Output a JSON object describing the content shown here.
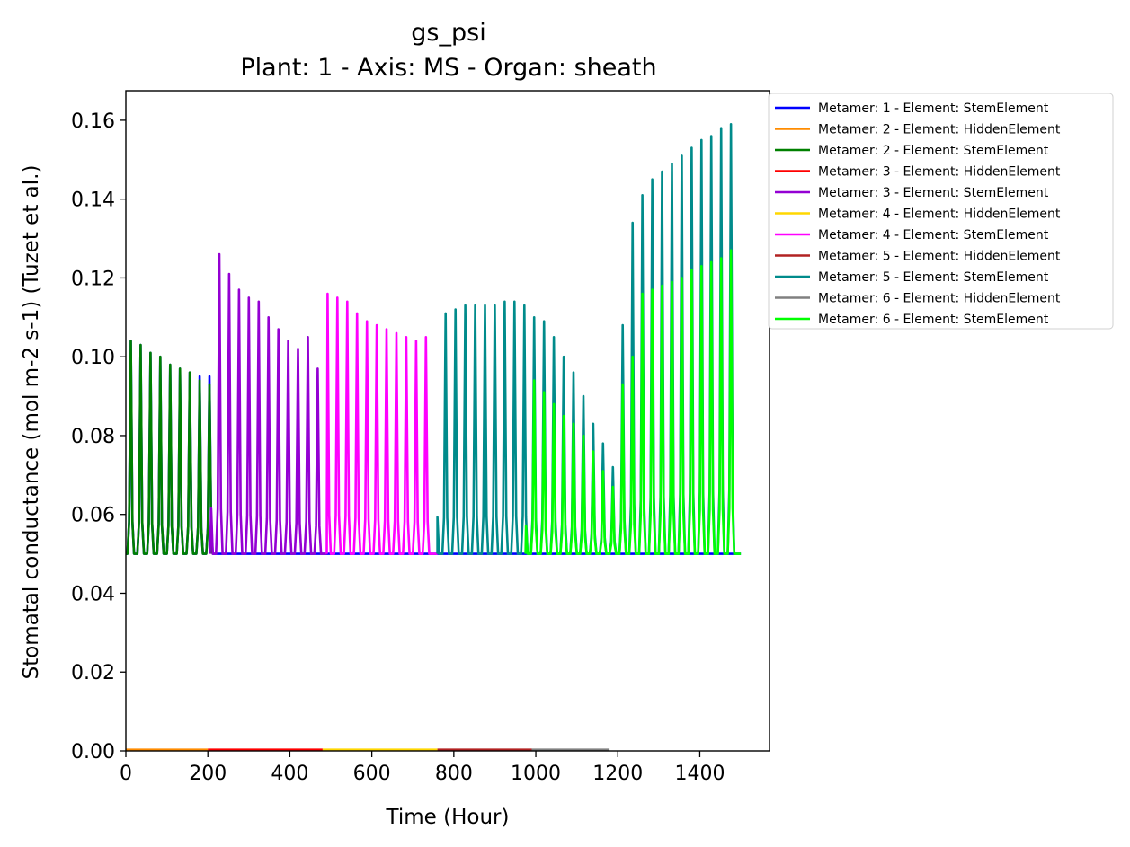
{
  "chart_data": {
    "type": "line",
    "title": "gs_psi",
    "subtitle": "Plant: 1 - Axis: MS - Organ: sheath",
    "xlabel": "Time (Hour)",
    "ylabel": "Stomatal conductance (mol m-2 s-1) (Tuzet et al.)",
    "xlim": [
      0,
      1570
    ],
    "ylim": [
      0,
      0.1675
    ],
    "xticks": [
      "0",
      "200",
      "400",
      "600",
      "800",
      "1000",
      "1200",
      "1400"
    ],
    "xtick_values": [
      0,
      200,
      400,
      600,
      800,
      1000,
      1200,
      1400
    ],
    "yticks": [
      "0.00",
      "0.02",
      "0.04",
      "0.06",
      "0.08",
      "0.10",
      "0.12",
      "0.14",
      "0.16"
    ],
    "ytick_values": [
      0,
      0.02,
      0.04,
      0.06,
      0.08,
      0.1,
      0.12,
      0.14,
      0.16
    ],
    "grid": false,
    "legend_position": "outside-right",
    "baseline": 0.05,
    "period_hours": 24,
    "series": [
      {
        "name": "Metamer: 1 - Element: StemElement",
        "color": "#0000ff",
        "start": 0,
        "end": 1500,
        "peaks": [
          0.104,
          0.103,
          0.101,
          0.1,
          0.098,
          0.097,
          0.096,
          0.095,
          0.095
        ]
      },
      {
        "name": "Metamer: 2 - Element: HiddenElement",
        "color": "#ff8c00",
        "start": 0,
        "end": 200,
        "flat": 0.0003
      },
      {
        "name": "Metamer: 2 - Element: StemElement",
        "color": "#008000",
        "start": 0,
        "end": 210,
        "peaks": [
          0.104,
          0.103,
          0.101,
          0.1,
          0.098,
          0.097,
          0.096,
          0.094,
          0.093
        ]
      },
      {
        "name": "Metamer: 3 - Element: HiddenElement",
        "color": "#ff0000",
        "start": 200,
        "end": 480,
        "flat": 0.0003
      },
      {
        "name": "Metamer: 3 - Element: StemElement",
        "color": "#9400d3",
        "start": 205,
        "end": 490,
        "peaks": [
          0.127,
          0.126,
          0.121,
          0.117,
          0.115,
          0.114,
          0.11,
          0.107,
          0.104,
          0.102,
          0.105,
          0.097
        ]
      },
      {
        "name": "Metamer: 4 - Element: HiddenElement",
        "color": "#ffd700",
        "start": 480,
        "end": 760,
        "flat": 0.0003
      },
      {
        "name": "Metamer: 4 - Element: StemElement",
        "color": "#ff00ff",
        "start": 490,
        "end": 760,
        "peaks": [
          0.116,
          0.115,
          0.114,
          0.111,
          0.109,
          0.108,
          0.107,
          0.106,
          0.105,
          0.104,
          0.105
        ]
      },
      {
        "name": "Metamer: 5 - Element: HiddenElement",
        "color": "#b22222",
        "start": 760,
        "end": 990,
        "flat": 0.0003
      },
      {
        "name": "Metamer: 5 - Element: StemElement",
        "color": "#008b8b",
        "start": 760,
        "end": 1500,
        "peaks": [
          0.112,
          0.111,
          0.112,
          0.113,
          0.113,
          0.113,
          0.113,
          0.114,
          0.114,
          0.113,
          0.11,
          0.109,
          0.105,
          0.1,
          0.096,
          0.09,
          0.083,
          0.078,
          0.072,
          0.108,
          0.134,
          0.141,
          0.145,
          0.147,
          0.149,
          0.151,
          0.153,
          0.155,
          0.156,
          0.158,
          0.159
        ]
      },
      {
        "name": "Metamer: 6 - Element: HiddenElement",
        "color": "#808080",
        "start": 990,
        "end": 1180,
        "flat": 0.0003
      },
      {
        "name": "Metamer: 6 - Element: StemElement",
        "color": "#00ff00",
        "start": 975,
        "end": 1500,
        "peaks": [
          0.097,
          0.094,
          0.091,
          0.088,
          0.085,
          0.083,
          0.08,
          0.076,
          0.071,
          0.067,
          0.093,
          0.1,
          0.116,
          0.117,
          0.118,
          0.119,
          0.12,
          0.122,
          0.123,
          0.124,
          0.125,
          0.127
        ]
      }
    ]
  }
}
